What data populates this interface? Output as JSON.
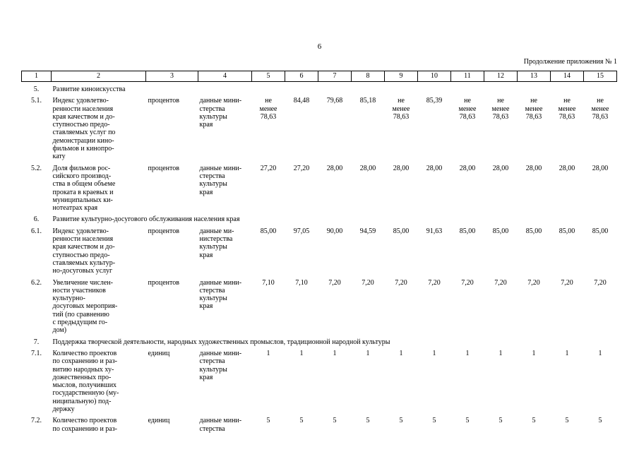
{
  "page": {
    "number": "6",
    "continuation_note": "Продолжение приложения № 1"
  },
  "table": {
    "column_headers": [
      "1",
      "2",
      "3",
      "4",
      "5",
      "6",
      "7",
      "8",
      "9",
      "10",
      "11",
      "12",
      "13",
      "14",
      "15"
    ],
    "rows": [
      {
        "type": "section",
        "num": "5.",
        "title": "Развитие киноискусства"
      },
      {
        "type": "data",
        "num": "5.1.",
        "name": "Индекс удовлетво-\nренности населения\nкрая качеством и до-\nступностью предо-\nставляемых услуг по\nдемонстрации кино-\nфильмов и кинопро-\nкату",
        "unit": "процентов",
        "source": "данные мини-\nстерства\nкультуры\nкрая",
        "values": [
          "не\nменее\n78,63",
          "84,48",
          "79,68",
          "85,18",
          "не\nменее\n78,63",
          "85,39",
          "не\nменее\n78,63",
          "не\nменее\n78,63",
          "не\nменее\n78,63",
          "не\nменее\n78,63",
          "не\nменее\n78,63"
        ]
      },
      {
        "type": "data",
        "num": "5.2.",
        "name": "Доля фильмов рос-\nсийского производ-\nства в общем объеме\nпроката в краевых и\nмуниципальных ки-\nнотеатрах края",
        "unit": "процентов",
        "source": "данные мини-\nстерства\nкультуры\nкрая",
        "values": [
          "27,20",
          "27,20",
          "28,00",
          "28,00",
          "28,00",
          "28,00",
          "28,00",
          "28,00",
          "28,00",
          "28,00",
          "28,00"
        ]
      },
      {
        "type": "section",
        "num": "6.",
        "title": "Развитие культурно-досугового обслуживания населения края"
      },
      {
        "type": "data",
        "num": "6.1.",
        "name": "Индекс удовлетво-\nренности населения\nкрая качеством и до-\nступностью предо-\nставляемых культур-\nно-досуговых услуг",
        "unit": "процентов",
        "source": "данные ми-\nнистерства\nкультуры\nкрая",
        "values": [
          "85,00",
          "97,05",
          "90,00",
          "94,59",
          "85,00",
          "91,63",
          "85,00",
          "85,00",
          "85,00",
          "85,00",
          "85,00"
        ]
      },
      {
        "type": "data",
        "num": "6.2.",
        "name": "Увеличение числен-\nности участников\nкультурно-\nдосуговых мероприя-\nтий (по сравнению\nс предыдущим го-\nдом)",
        "unit": "процентов",
        "source": "данные мини-\nстерства\nкультуры\nкрая",
        "values": [
          "7,10",
          "7,10",
          "7,20",
          "7,20",
          "7,20",
          "7,20",
          "7,20",
          "7,20",
          "7,20",
          "7,20",
          "7,20"
        ]
      },
      {
        "type": "section",
        "num": "7.",
        "title": "Поддержка творческой деятельности, народных художественных промыслов, традиционной народной культуры"
      },
      {
        "type": "data",
        "num": "7.1.",
        "name": "Количество проектов\nпо сохранению и раз-\nвитию народных ху-\nдожественных про-\nмыслов, получивших\nгосударственную (му-\nниципальную) под-\nдержку",
        "unit": "единиц",
        "source": "данные мини-\nстерства\nкультуры\nкрая",
        "values": [
          "1",
          "1",
          "1",
          "1",
          "1",
          "1",
          "1",
          "1",
          "1",
          "1",
          "1"
        ]
      },
      {
        "type": "data",
        "num": "7.2.",
        "name": "Количество проектов\nпо сохранению и раз-",
        "unit": "единиц",
        "source": "данные мини-\nстерства",
        "values": [
          "5",
          "5",
          "5",
          "5",
          "5",
          "5",
          "5",
          "5",
          "5",
          "5",
          "5"
        ]
      }
    ]
  }
}
